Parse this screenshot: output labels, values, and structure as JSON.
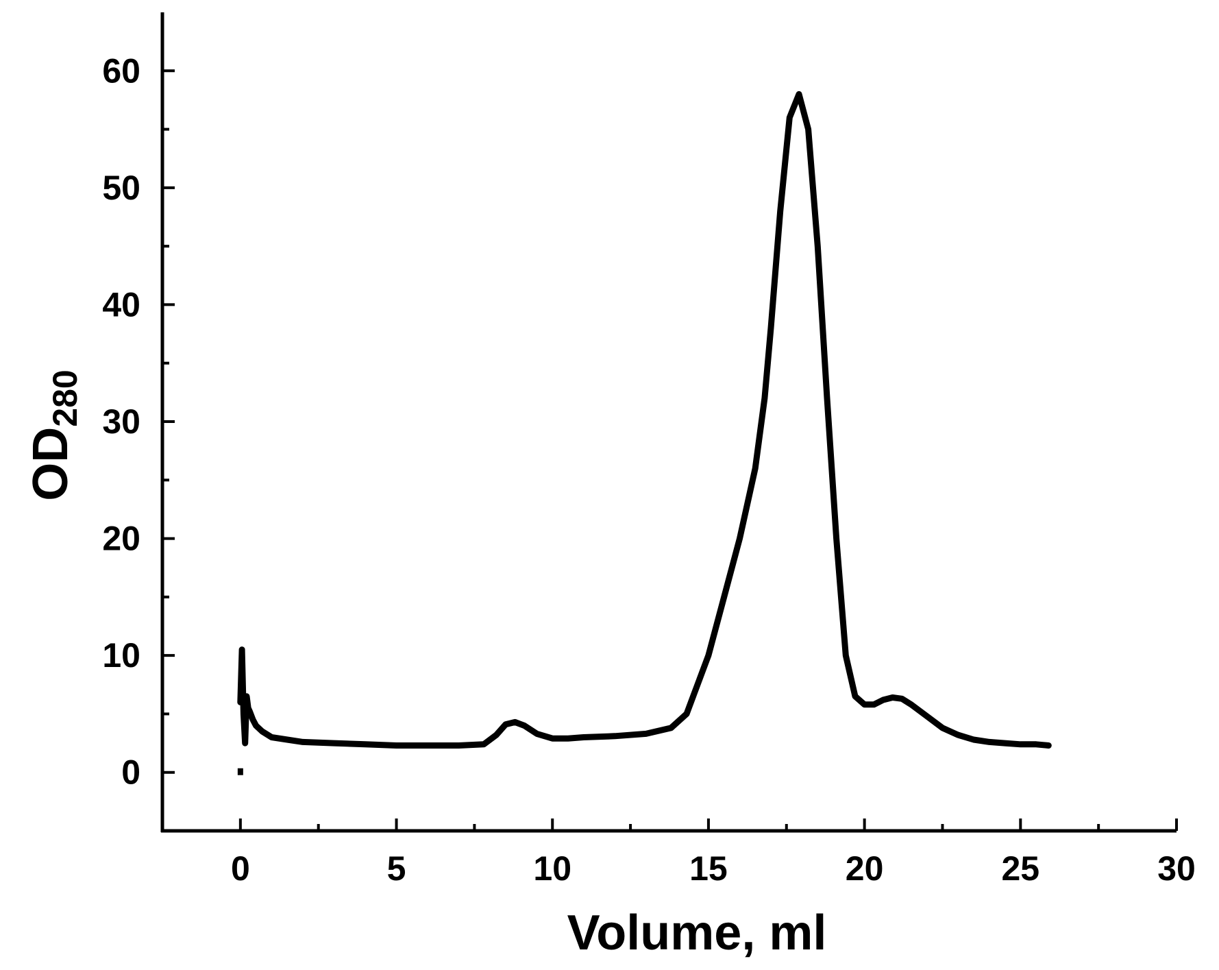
{
  "chart_data": {
    "type": "line",
    "title": "",
    "xlabel": "Volume, ml",
    "ylabel_main": "OD",
    "ylabel_sub": "280",
    "xlim": [
      -2.5,
      30
    ],
    "ylim": [
      -5,
      65
    ],
    "x_major_ticks": [
      0,
      5,
      10,
      15,
      20,
      25,
      30
    ],
    "x_tick_labels": [
      "0",
      "5",
      "10",
      "15",
      "20",
      "25",
      "30"
    ],
    "x_minor_ticks": [
      2.5,
      7.5,
      12.5,
      17.5,
      22.5,
      27.5
    ],
    "y_major_ticks": [
      0,
      10,
      20,
      30,
      40,
      50,
      60
    ],
    "y_tick_labels": [
      "0",
      "10",
      "20",
      "30",
      "40",
      "50",
      "60"
    ],
    "y_minor_ticks": [
      -5,
      5,
      15,
      25,
      35,
      45,
      55
    ],
    "grid": false,
    "legend": "none",
    "line_color": "#000000",
    "marker_point": {
      "x": 0.0,
      "y": 0.0
    },
    "series": [
      {
        "x": [
          0.0,
          0.05,
          0.1,
          0.15,
          0.2,
          0.25,
          0.3,
          0.4,
          0.5,
          0.7,
          1.0,
          1.5,
          2.0,
          3.0,
          4.0,
          5.0,
          6.0,
          7.0,
          7.8,
          8.2,
          8.5,
          8.8,
          9.1,
          9.5,
          10.0,
          10.5,
          11.0,
          12.0,
          13.0,
          13.8,
          14.3,
          15.0,
          15.5,
          16.0,
          16.5,
          16.8,
          17.0,
          17.3,
          17.6,
          17.9,
          18.2,
          18.5,
          18.8,
          19.1,
          19.4,
          19.7,
          20.0,
          20.3,
          20.6,
          20.9,
          21.2,
          21.5,
          22.0,
          22.5,
          23.0,
          23.5,
          24.0,
          24.5,
          25.0,
          25.5,
          25.9
        ],
        "y": [
          6.0,
          10.5,
          5.0,
          2.5,
          6.5,
          5.5,
          5.2,
          4.5,
          4.0,
          3.5,
          3.0,
          2.8,
          2.6,
          2.5,
          2.4,
          2.3,
          2.3,
          2.3,
          2.4,
          3.2,
          4.1,
          4.3,
          4.0,
          3.3,
          2.9,
          2.9,
          3.0,
          3.1,
          3.3,
          3.8,
          5.0,
          10.0,
          15.0,
          20.0,
          26.0,
          32.0,
          38.0,
          48.0,
          56.0,
          58.0,
          55.0,
          45.0,
          32.0,
          20.0,
          10.0,
          6.5,
          5.8,
          5.8,
          6.2,
          6.4,
          6.3,
          5.8,
          4.8,
          3.8,
          3.2,
          2.8,
          2.6,
          2.5,
          2.4,
          2.4,
          2.3
        ]
      }
    ]
  }
}
